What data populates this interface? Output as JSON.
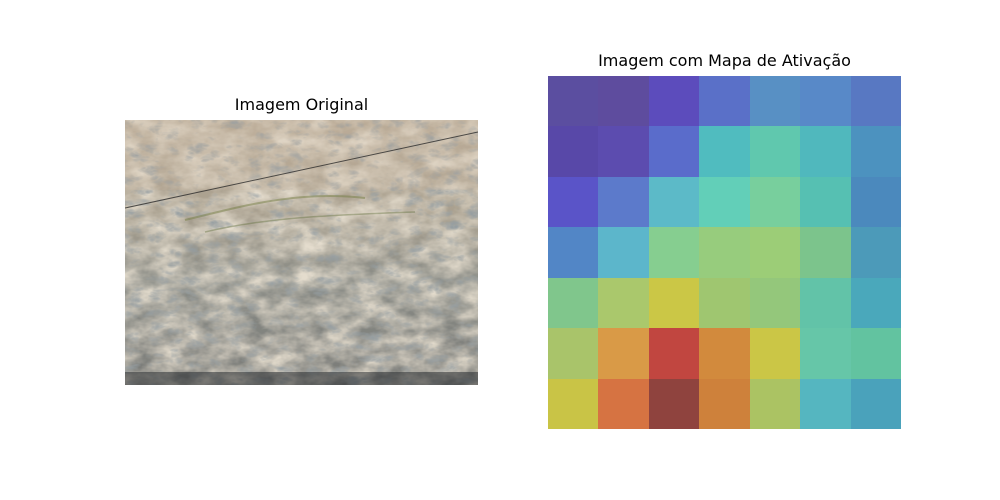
{
  "figure": {
    "left_panel": {
      "title": "Imagem Original"
    },
    "right_panel": {
      "title": "Imagem com Mapa de Ativação"
    }
  },
  "chart_data": {
    "type": "heatmap",
    "title": "Imagem com Mapa de Ativação",
    "rows": 7,
    "cols": 7,
    "cell_colors": [
      [
        "#5b4ea0",
        "#5e4c9e",
        "#5c4cbc",
        "#5a70c8",
        "#5890c4",
        "#5889c8",
        "#5878c2"
      ],
      [
        "#5848a8",
        "#5c4caf",
        "#5a6ccb",
        "#50bcbf",
        "#60c8ae",
        "#50b8bd",
        "#4c92bf"
      ],
      [
        "#5a54c8",
        "#5c7acb",
        "#5cbac8",
        "#62cfb8",
        "#78cf9d",
        "#56c0b2",
        "#4b89bd"
      ],
      [
        "#5286c6",
        "#5cb6cb",
        "#86ce90",
        "#97cc7d",
        "#9ccd77",
        "#7cc48c",
        "#4c9ab9"
      ],
      [
        "#80c68c",
        "#aac86c",
        "#cbc746",
        "#9fc670",
        "#94c77b",
        "#62c3a8",
        "#4aa8bb"
      ],
      [
        "#a9c46a",
        "#d99a47",
        "#c14640",
        "#d28a3d",
        "#cbc646",
        "#66c6a8",
        "#62c3a0"
      ],
      [
        "#c9c446",
        "#d67342",
        "#8f433e",
        "#ce813b",
        "#abc363",
        "#55b6c0",
        "#4aa2bb"
      ]
    ],
    "colormap": "jet-like (blue low → red high), semi-transparent overlay"
  }
}
